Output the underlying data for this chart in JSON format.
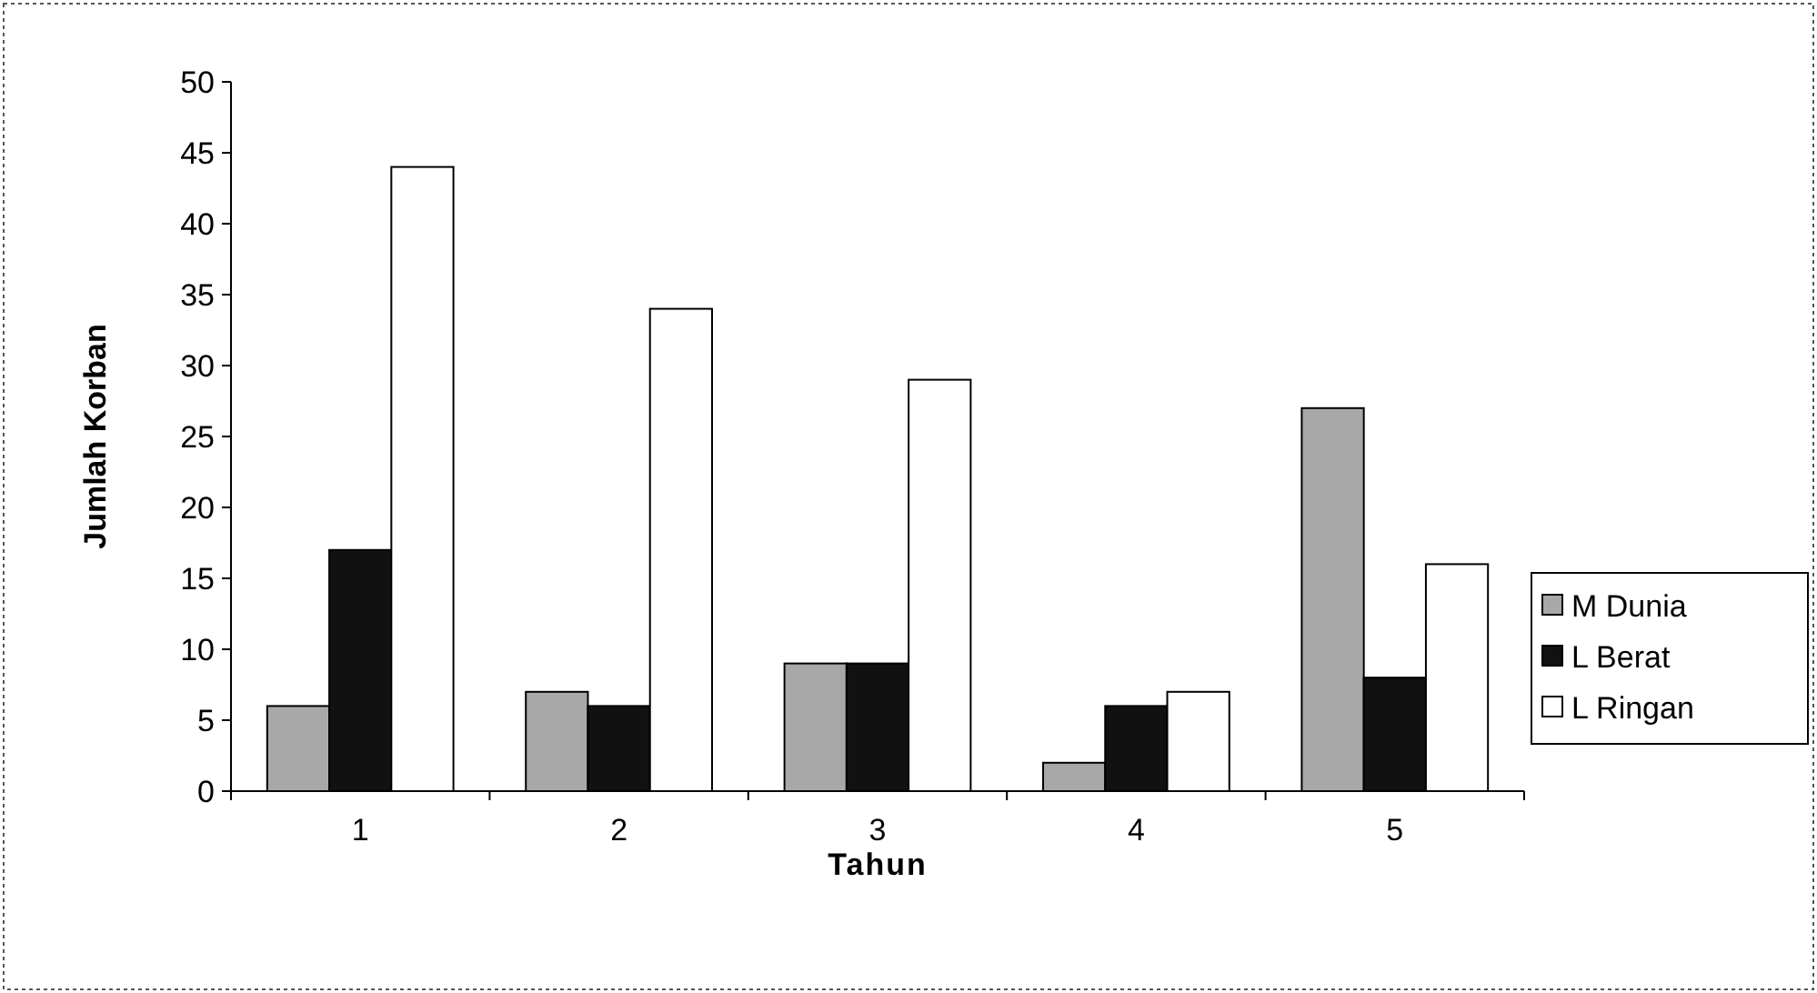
{
  "chart_data": {
    "type": "bar",
    "xlabel": "Tahun",
    "ylabel": "Jumlah Korban",
    "categories": [
      "1",
      "2",
      "3",
      "4",
      "5"
    ],
    "series": [
      {
        "name": "M Dunia",
        "color": "#a8a8a8",
        "values": [
          6,
          7,
          9,
          2,
          27
        ]
      },
      {
        "name": "L Berat",
        "color": "#111111",
        "values": [
          17,
          6,
          9,
          6,
          8
        ]
      },
      {
        "name": "L Ringan",
        "color": "#ffffff",
        "values": [
          44,
          34,
          29,
          7,
          16
        ]
      }
    ],
    "ylim": [
      0,
      50
    ],
    "yticks": [
      0,
      5,
      10,
      15,
      20,
      25,
      30,
      35,
      40,
      45,
      50
    ],
    "grid": false,
    "legend": "right"
  }
}
